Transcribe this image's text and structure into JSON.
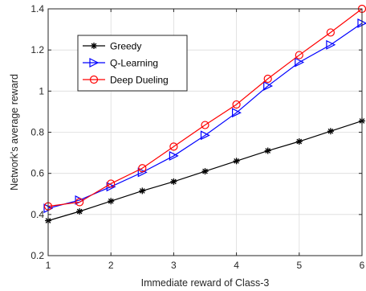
{
  "chart_data": {
    "type": "line",
    "title": "",
    "xlabel": "Immediate reward of Class-3",
    "ylabel": "Network's average reward",
    "xlim": [
      1,
      6
    ],
    "ylim": [
      0.2,
      1.4
    ],
    "xticks": [
      1,
      2,
      3,
      4,
      5,
      6
    ],
    "yticks": [
      0.2,
      0.4,
      0.6,
      0.8,
      1,
      1.2,
      1.4
    ],
    "grid": true,
    "legend_position": "top-left",
    "x": [
      1,
      1.5,
      2,
      2.5,
      3,
      3.5,
      4,
      4.5,
      5,
      5.5,
      6
    ],
    "series": [
      {
        "name": "Greedy",
        "color": "#000000",
        "marker": "asterisk",
        "values": [
          0.37,
          0.415,
          0.465,
          0.515,
          0.56,
          0.61,
          0.66,
          0.71,
          0.755,
          0.805,
          0.855
        ]
      },
      {
        "name": "Q-Learning",
        "color": "#0000ff",
        "marker": "triangle-right",
        "values": [
          0.43,
          0.47,
          0.535,
          0.605,
          0.685,
          0.785,
          0.895,
          1.025,
          1.14,
          1.225,
          1.33
        ]
      },
      {
        "name": "Deep Dueling",
        "color": "#ff0000",
        "marker": "circle",
        "values": [
          0.44,
          0.46,
          0.55,
          0.625,
          0.73,
          0.835,
          0.935,
          1.06,
          1.175,
          1.285,
          1.4
        ]
      }
    ]
  }
}
